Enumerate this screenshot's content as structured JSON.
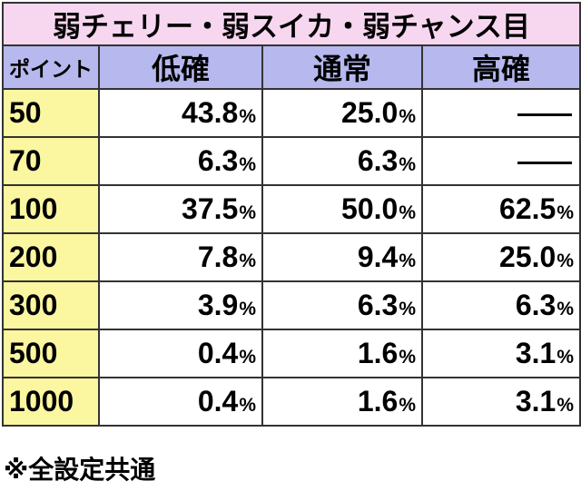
{
  "title": "弱チェリー・弱スイカ・弱チャンス目",
  "headers": {
    "point": "ポイント",
    "low": "低確",
    "normal": "通常",
    "high": "高確"
  },
  "rows": [
    {
      "point": "50",
      "low": "43.8",
      "normal": "25.0",
      "high": null
    },
    {
      "point": "70",
      "low": "6.3",
      "normal": "6.3",
      "high": null
    },
    {
      "point": "100",
      "low": "37.5",
      "normal": "50.0",
      "high": "62.5"
    },
    {
      "point": "200",
      "low": "7.8",
      "normal": "9.4",
      "high": "25.0"
    },
    {
      "point": "300",
      "low": "3.9",
      "normal": "6.3",
      "high": "6.3"
    },
    {
      "point": "500",
      "low": "0.4",
      "normal": "1.6",
      "high": "3.1"
    },
    {
      "point": "1000",
      "low": "0.4",
      "normal": "1.6",
      "high": "3.1"
    }
  ],
  "percent_sign": "%",
  "dash_symbol": "―",
  "footnote": "※全設定共通",
  "colors": {
    "title_bg": "#f7d6f0",
    "header_bg": "#b6b8ee",
    "point_bg": "#fbf6a0",
    "value_bg": "#ffffff"
  }
}
